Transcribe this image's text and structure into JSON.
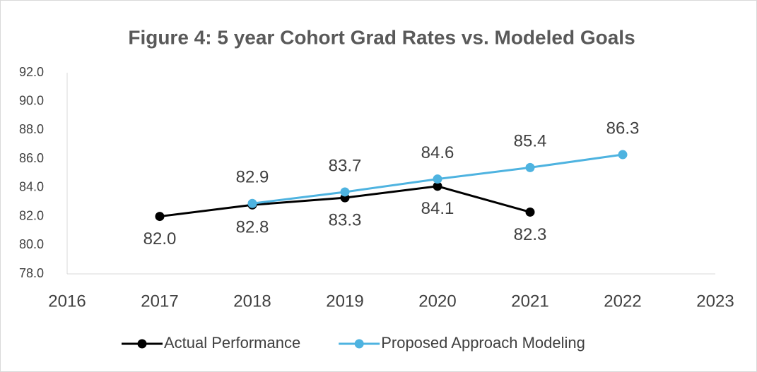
{
  "chart_data": {
    "type": "line",
    "title": "Figure 4: 5 year Cohort Grad Rates vs. Modeled Goals",
    "x": [
      2017,
      2018,
      2019,
      2020,
      2021,
      2022
    ],
    "series": [
      {
        "name": "Actual Performance",
        "color": "#000000",
        "values": [
          82,
          82.8,
          83.3,
          84.1,
          82.3,
          null
        ],
        "value_labels": [
          "82.0",
          "82.8",
          "83.3",
          "84.1",
          "82.3",
          null
        ]
      },
      {
        "name": "Proposed Approach Modeling",
        "color": "#4eb3e0",
        "values": [
          null,
          82.9,
          83.7,
          84.6,
          85.4,
          86.3
        ],
        "value_labels": [
          null,
          "82.9",
          "83.7",
          "84.6",
          "85.4",
          "86.3"
        ]
      }
    ],
    "xlim": [
      2016,
      2023
    ],
    "xticks": [
      2016,
      2017,
      2018,
      2019,
      2020,
      2021,
      2022,
      2023
    ],
    "ylim": [
      78,
      92
    ],
    "yticks": [
      {
        "value": 78,
        "label": "78.0"
      },
      {
        "value": 80,
        "label": "80.0"
      },
      {
        "value": 82,
        "label": "82.0"
      },
      {
        "value": 84,
        "label": "84.0"
      },
      {
        "value": 86,
        "label": "86.0"
      },
      {
        "value": 88,
        "label": "88.0"
      },
      {
        "value": 90,
        "label": "90.0"
      },
      {
        "value": 92,
        "label": "92.0"
      }
    ],
    "grid": false,
    "legend": "bottom"
  }
}
